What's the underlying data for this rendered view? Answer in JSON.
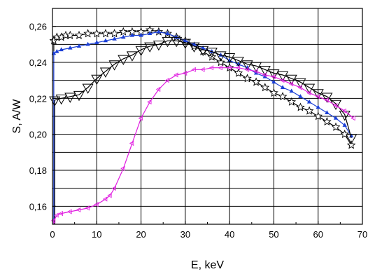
{
  "chart_data": {
    "type": "line",
    "xlabel": "E, keV",
    "ylabel": "S, A/W",
    "xlim": [
      0,
      70
    ],
    "ylim": [
      0.15,
      0.27
    ],
    "grid": true,
    "x_ticks": [
      "0",
      "10",
      "20",
      "30",
      "40",
      "50",
      "60",
      "70"
    ],
    "y_ticks": [
      "0,16",
      "0,18",
      "0,20",
      "0,22",
      "0,24",
      "0,26"
    ],
    "series": [
      {
        "marker": "star",
        "color": "#000000",
        "x": [
          0.3,
          1,
          2,
          3,
          4,
          6,
          8,
          10,
          12,
          14,
          16,
          18,
          20,
          22,
          24,
          26,
          28,
          30,
          32,
          34,
          36,
          38,
          40,
          42,
          44,
          46,
          48,
          50,
          52,
          54,
          56,
          58,
          60,
          62,
          64,
          66,
          67.5
        ],
        "y": [
          0.252,
          0.254,
          0.254,
          0.255,
          0.255,
          0.255,
          0.256,
          0.256,
          0.256,
          0.256,
          0.257,
          0.257,
          0.257,
          0.258,
          0.257,
          0.256,
          0.254,
          0.252,
          0.249,
          0.246,
          0.243,
          0.24,
          0.237,
          0.234,
          0.231,
          0.229,
          0.226,
          0.223,
          0.221,
          0.218,
          0.215,
          0.213,
          0.21,
          0.207,
          0.204,
          0.2,
          0.194
        ]
      },
      {
        "marker": "triangle-up",
        "color": "#1a3fd6",
        "x": [
          0.3,
          1,
          2,
          4,
          6,
          8,
          10,
          12,
          14,
          16,
          18,
          20,
          22,
          24,
          26,
          28,
          30,
          32,
          34,
          36,
          38,
          40,
          42,
          44,
          46,
          48,
          50,
          52,
          54,
          56,
          58,
          60,
          62,
          64,
          66,
          67.5
        ],
        "y": [
          0.245,
          0.246,
          0.247,
          0.248,
          0.249,
          0.25,
          0.251,
          0.252,
          0.253,
          0.254,
          0.255,
          0.255,
          0.256,
          0.257,
          0.256,
          0.254,
          0.252,
          0.25,
          0.248,
          0.246,
          0.244,
          0.241,
          0.239,
          0.237,
          0.234,
          0.232,
          0.229,
          0.226,
          0.224,
          0.221,
          0.218,
          0.215,
          0.212,
          0.209,
          0.205,
          0.199
        ]
      },
      {
        "marker": "triangle-down",
        "color": "#000000",
        "x": [
          0.5,
          2,
          4,
          6,
          8,
          10,
          12,
          14,
          16,
          18,
          20,
          22,
          24,
          26,
          28,
          30,
          32,
          34,
          36,
          38,
          40,
          42,
          44,
          46,
          48,
          50,
          52,
          54,
          56,
          58,
          60,
          62,
          64,
          66,
          67.5
        ],
        "y": [
          0.219,
          0.22,
          0.221,
          0.222,
          0.226,
          0.231,
          0.235,
          0.239,
          0.242,
          0.244,
          0.247,
          0.249,
          0.25,
          0.252,
          0.252,
          0.251,
          0.249,
          0.247,
          0.246,
          0.244,
          0.243,
          0.241,
          0.239,
          0.238,
          0.236,
          0.234,
          0.233,
          0.231,
          0.229,
          0.226,
          0.223,
          0.221,
          0.217,
          0.211,
          0.198
        ]
      },
      {
        "marker": "triangle-left",
        "color": "#e01ce0",
        "x": [
          0.3,
          1,
          2,
          4,
          6,
          8,
          10,
          12,
          13,
          14,
          16,
          18,
          20,
          22,
          24,
          26,
          28,
          30,
          32,
          34,
          36,
          38,
          40,
          42,
          44,
          46,
          48,
          50,
          52,
          54,
          56,
          58,
          60,
          62,
          64,
          66,
          68
        ],
        "y": [
          0.152,
          0.155,
          0.156,
          0.157,
          0.158,
          0.159,
          0.161,
          0.164,
          0.166,
          0.17,
          0.181,
          0.195,
          0.209,
          0.218,
          0.225,
          0.23,
          0.233,
          0.234,
          0.236,
          0.236,
          0.237,
          0.237,
          0.237,
          0.237,
          0.236,
          0.235,
          0.233,
          0.232,
          0.23,
          0.228,
          0.226,
          0.223,
          0.221,
          0.219,
          0.216,
          0.213,
          0.209
        ]
      }
    ]
  }
}
